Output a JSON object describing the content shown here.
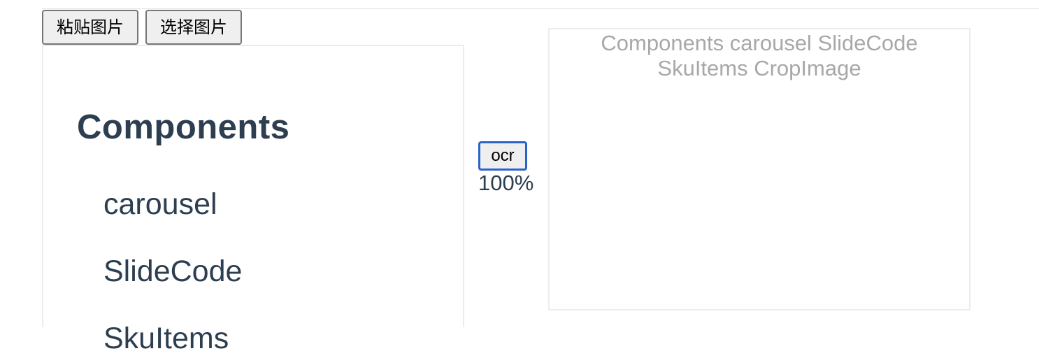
{
  "toolbar": {
    "paste_label": "粘贴图片",
    "choose_label": "选择图片"
  },
  "preview": {
    "heading": "Components",
    "items": [
      "carousel",
      "SlideCode",
      "SkuItems"
    ]
  },
  "ocr": {
    "button_label": "ocr",
    "progress": "100%"
  },
  "result": {
    "text": "Components carousel SlideCode SkuItems CropImage"
  }
}
